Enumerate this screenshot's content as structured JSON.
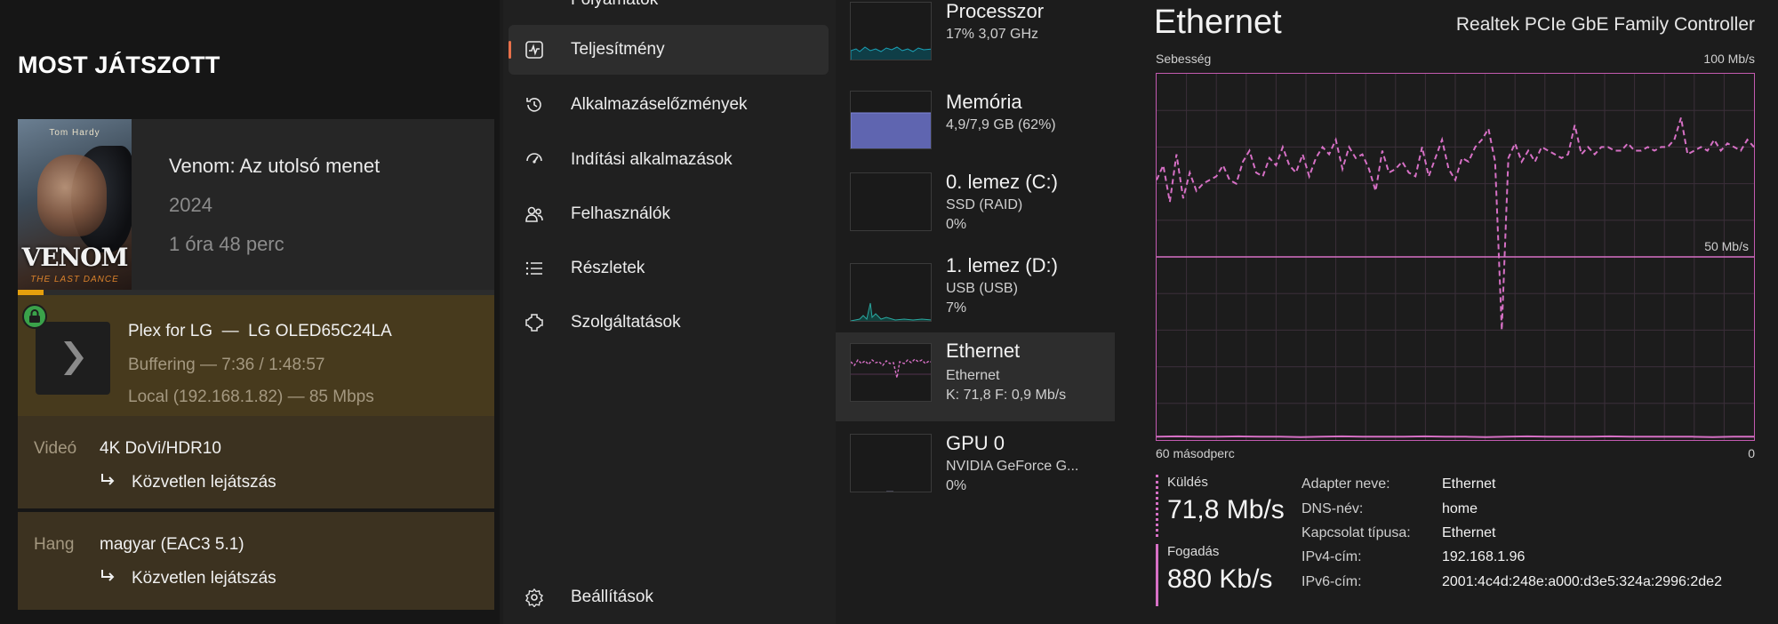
{
  "plex": {
    "heading": "MOST JÁTSZOTT",
    "poster": {
      "actor": "Tom Hardy",
      "title": "VENOM",
      "subtitle": "THE LAST DANCE"
    },
    "movie": {
      "title": "Venom: Az utolsó menet",
      "year": "2024",
      "duration": "1 óra 48 perc"
    },
    "progress_fraction": 0.055,
    "session": {
      "player": "Plex for LG  —  LG OLED65C24LA",
      "buffering": "Buffering — 7:36 / 1:48:57",
      "local": "Local (192.168.1.82) — 85 Mbps"
    },
    "video": {
      "label": "Videó",
      "value": "4K DoVi/HDR10",
      "action": "Közvetlen lejátszás"
    },
    "audio": {
      "label": "Hang",
      "value": "magyar (EAC3 5.1)",
      "action": "Közvetlen lejátszás"
    },
    "colors": {
      "accent": "#e5a00d",
      "lock": "#3aa24a"
    }
  },
  "nav": {
    "items": [
      {
        "label": "Folyamatok",
        "icon": "processes-icon"
      },
      {
        "label": "Teljesítmény",
        "icon": "performance-icon",
        "active": true
      },
      {
        "label": "Alkalmazáselőzmények",
        "icon": "history-icon"
      },
      {
        "label": "Indítási alkalmazások",
        "icon": "startup-icon"
      },
      {
        "label": "Felhasználók",
        "icon": "users-icon"
      },
      {
        "label": "Részletek",
        "icon": "details-icon"
      },
      {
        "label": "Szolgáltatások",
        "icon": "services-icon"
      }
    ],
    "settings": {
      "label": "Beállítások",
      "icon": "settings-icon"
    },
    "colors": {
      "active_indicator": "#e8704a"
    }
  },
  "resources": [
    {
      "name": "Processzor",
      "line1": "17% 3,07 GHz",
      "line2": ""
    },
    {
      "name": "Memória",
      "line1": "4,9/7,9 GB (62%)",
      "line2": ""
    },
    {
      "name": "0. lemez (C:)",
      "line1": "SSD (RAID)",
      "line2": "0%"
    },
    {
      "name": "1. lemez (D:)",
      "line1": "USB (USB)",
      "line2": "7%"
    },
    {
      "name": "Ethernet",
      "line1": "Ethernet",
      "line2": "K: 71,8 F: 0,9 Mb/s",
      "active": true
    },
    {
      "name": "GPU 0",
      "line1": "NVIDIA GeForce G...",
      "line2": "0%"
    }
  ],
  "resource_colors": {
    "cpu": "#1aa3b8",
    "memory": "#7f86d8",
    "disk": "#2aa8a0",
    "ethernet": "#d670c5"
  },
  "detail": {
    "title": "Ethernet",
    "adapter": "Realtek PCIe GbE Family Controller",
    "speed_label": "Sebesség",
    "max_label": "100 Mb/s",
    "mid_label": "50 Mb/s",
    "time_label": "60 másodperc",
    "zero_label": "0",
    "send": {
      "label": "Küldés",
      "value": "71,8 Mb/s"
    },
    "receive": {
      "label": "Fogadás",
      "value": "880 Kb/s"
    },
    "properties": [
      {
        "key": "Adapter neve:",
        "value": "Ethernet"
      },
      {
        "key": "DNS-név:",
        "value": "home"
      },
      {
        "key": "Kapcsolat típusa:",
        "value": "Ethernet"
      },
      {
        "key": "IPv4-cím:",
        "value": "192.168.1.96"
      },
      {
        "key": "IPv6-cím:",
        "value": "2001:4c4d:248e:a000:d3e5:324a:2996:2de2"
      }
    ],
    "send_series_mbps": [
      71,
      75,
      65,
      78,
      66,
      73,
      68,
      70,
      71,
      72,
      75,
      71,
      70,
      76,
      79,
      73,
      72,
      77,
      75,
      80,
      75,
      73,
      78,
      72,
      77,
      80,
      78,
      82,
      74,
      80,
      77,
      78,
      74,
      68,
      79,
      73,
      74,
      76,
      73,
      72,
      80,
      72,
      77,
      82,
      74,
      71,
      77,
      76,
      80,
      82,
      85,
      76,
      30,
      77,
      81,
      76,
      79,
      76,
      80,
      79,
      78,
      77,
      78,
      86,
      78,
      80,
      78,
      80,
      80,
      79,
      79,
      81,
      79,
      79,
      80,
      79,
      80,
      80,
      82,
      88,
      78,
      79,
      80,
      79,
      82,
      79,
      81,
      80,
      79,
      82,
      80
    ],
    "receive_series_mbps": [
      0.9,
      1.0,
      0.9,
      0.9,
      1.0,
      0.9,
      0.9,
      0.8,
      0.9,
      1.0,
      0.9,
      0.9,
      0.9,
      1.0,
      0.9,
      0.9,
      0.8,
      0.9,
      1.0,
      0.9,
      0.9,
      0.9,
      1.0,
      0.9,
      0.9,
      0.9,
      0.9,
      0.8,
      0.9,
      0.9
    ],
    "y_max_mbps": 100,
    "colors": {
      "graph": "#d670c5",
      "grid": "#3b2f3a",
      "border": "#c35ab0"
    }
  }
}
